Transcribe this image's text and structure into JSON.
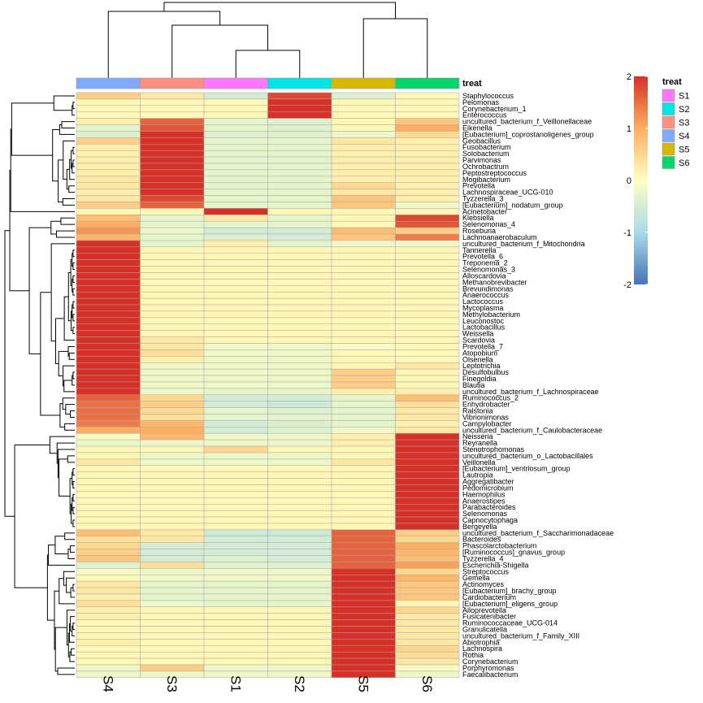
{
  "chart_data": {
    "type": "heatmap",
    "columns": [
      "S4",
      "S3",
      "S1",
      "S2",
      "S5",
      "S6"
    ],
    "annotation": {
      "title": "treat",
      "legend": [
        {
          "label": "S1",
          "color": "#FF77FF"
        },
        {
          "label": "S2",
          "color": "#00E5E5"
        },
        {
          "label": "S3",
          "color": "#FF9080"
        },
        {
          "label": "S4",
          "color": "#80AAFF"
        },
        {
          "label": "S5",
          "color": "#D6B800"
        },
        {
          "label": "S6",
          "color": "#00D66A"
        }
      ]
    },
    "colorbar": {
      "min": -2,
      "max": 2,
      "ticks": [
        2,
        1,
        0,
        -1,
        -2
      ]
    },
    "rows": [
      {
        "name": "Staphylococcus",
        "values": [
          0.6,
          0.3,
          -0.5,
          1.8,
          -0.4,
          0.1
        ]
      },
      {
        "name": "Pelomonas",
        "values": [
          0.1,
          0.1,
          0.1,
          2.0,
          0.1,
          0.1
        ]
      },
      {
        "name": "Corynebacterium_1",
        "values": [
          0.1,
          0.1,
          0.1,
          2.0,
          0.1,
          0.1
        ]
      },
      {
        "name": "Enterococcus",
        "values": [
          0.1,
          0.1,
          0.1,
          2.0,
          0.1,
          0.1
        ]
      },
      {
        "name": "uncultured_bacterium_f_Veillonellaceae",
        "values": [
          0.2,
          1.6,
          -0.3,
          -0.4,
          0.1,
          0.7
        ]
      },
      {
        "name": "Eikenella",
        "values": [
          -0.3,
          1.7,
          -0.3,
          -0.4,
          0.1,
          1.0
        ]
      },
      {
        "name": "[Eubacterium]_coprostanoligenes_group",
        "values": [
          -0.4,
          2.0,
          -0.4,
          -0.4,
          -0.2,
          0.5
        ]
      },
      {
        "name": "Geobacillus",
        "values": [
          0.6,
          2.0,
          -0.3,
          -0.3,
          0.3,
          0.2
        ]
      },
      {
        "name": "Fusobacterium",
        "values": [
          0.2,
          2.0,
          -0.3,
          -0.3,
          0.2,
          0.2
        ]
      },
      {
        "name": "Solobacterium",
        "values": [
          0.2,
          2.0,
          -0.3,
          -0.3,
          0.2,
          0.2
        ]
      },
      {
        "name": "Parvimonas",
        "values": [
          0.2,
          2.0,
          -0.3,
          -0.3,
          0.2,
          0.2
        ]
      },
      {
        "name": "Ochrobactrum",
        "values": [
          0.2,
          2.0,
          -0.3,
          -0.3,
          0.2,
          0.2
        ]
      },
      {
        "name": "Peptostreptococcus",
        "values": [
          0.2,
          2.0,
          -0.3,
          -0.3,
          0.2,
          0.2
        ]
      },
      {
        "name": "Mogibacterium",
        "values": [
          0.3,
          2.0,
          -0.3,
          -0.3,
          0.2,
          0.2
        ]
      },
      {
        "name": "Prevotella",
        "values": [
          0.3,
          2.0,
          -0.3,
          -0.3,
          0.5,
          0.2
        ]
      },
      {
        "name": "Lachnospiraceae_UCG-010",
        "values": [
          0.2,
          2.0,
          -0.3,
          -0.3,
          0.3,
          0.2
        ]
      },
      {
        "name": "Tyzzerella_3",
        "values": [
          0.3,
          1.8,
          -0.3,
          -0.3,
          0.7,
          0.2
        ]
      },
      {
        "name": "[Eubacterium]_nodatum_group",
        "values": [
          0.6,
          1.6,
          -0.3,
          -0.3,
          0.7,
          -0.2
        ]
      },
      {
        "name": "Acinetobacter",
        "values": [
          0.1,
          0.1,
          2.0,
          0.1,
          0.1,
          0.1
        ]
      },
      {
        "name": "Klebsiella",
        "values": [
          0.8,
          -0.3,
          0.3,
          -0.3,
          0.1,
          1.8
        ]
      },
      {
        "name": "Selenomonas_4",
        "values": [
          1.0,
          -0.3,
          -0.3,
          -0.3,
          0.1,
          1.7
        ]
      },
      {
        "name": "Roseburia",
        "values": [
          1.2,
          -0.2,
          -0.5,
          -0.5,
          0.8,
          0.6
        ]
      },
      {
        "name": "Lachnoanaerobaculum",
        "values": [
          0.9,
          -0.3,
          -0.4,
          -0.5,
          0.7,
          1.4
        ]
      },
      {
        "name": "uncultured_bacterium_f_Mitochondria",
        "values": [
          2.0,
          -0.3,
          0.2,
          -0.3,
          -0.2,
          -0.2
        ]
      },
      {
        "name": "Tannerella",
        "values": [
          2.0,
          0.1,
          0.1,
          0.1,
          0.1,
          0.1
        ]
      },
      {
        "name": "Prevotella_6",
        "values": [
          2.0,
          0.1,
          0.1,
          0.1,
          0.1,
          0.1
        ]
      },
      {
        "name": "Treponema_2",
        "values": [
          2.0,
          0.1,
          0.1,
          0.1,
          0.1,
          0.1
        ]
      },
      {
        "name": "Selenomonas_3",
        "values": [
          2.0,
          0.1,
          0.1,
          0.1,
          0.1,
          0.1
        ]
      },
      {
        "name": "Alloscardovia",
        "values": [
          2.0,
          0.1,
          0.1,
          0.1,
          0.1,
          0.1
        ]
      },
      {
        "name": "Methanobrevibacter",
        "values": [
          2.0,
          0.1,
          0.1,
          0.1,
          0.1,
          0.1
        ]
      },
      {
        "name": "Brevundimonas",
        "values": [
          2.0,
          0.1,
          0.1,
          0.1,
          0.1,
          0.1
        ]
      },
      {
        "name": "Anaerococcus",
        "values": [
          2.0,
          0.1,
          0.1,
          0.1,
          0.1,
          0.1
        ]
      },
      {
        "name": "Lactococcus",
        "values": [
          2.0,
          0.1,
          0.1,
          0.1,
          0.1,
          0.1
        ]
      },
      {
        "name": "Mycoplasma",
        "values": [
          2.0,
          0.1,
          0.1,
          0.1,
          0.1,
          0.1
        ]
      },
      {
        "name": "Methylobacterium",
        "values": [
          2.0,
          0.1,
          0.1,
          0.1,
          0.1,
          0.1
        ]
      },
      {
        "name": "Leuconostoc",
        "values": [
          2.0,
          0.1,
          0.1,
          0.1,
          0.1,
          0.1
        ]
      },
      {
        "name": "Lactobacillus",
        "values": [
          2.0,
          0.1,
          0.1,
          0.1,
          0.1,
          0.1
        ]
      },
      {
        "name": "Weissella",
        "values": [
          2.0,
          0.1,
          0.1,
          0.1,
          0.1,
          0.1
        ]
      },
      {
        "name": "Scardovia",
        "values": [
          2.0,
          0.3,
          0.1,
          0.1,
          0.1,
          0.1
        ]
      },
      {
        "name": "Prevotella_7",
        "values": [
          2.0,
          0.3,
          -0.2,
          -0.2,
          -0.1,
          0.1
        ]
      },
      {
        "name": "Atopobium",
        "values": [
          2.0,
          0.4,
          -0.2,
          -0.2,
          0.1,
          0.1
        ]
      },
      {
        "name": "Olsenella",
        "values": [
          2.0,
          0.2,
          -0.2,
          -0.2,
          0.1,
          0.1
        ]
      },
      {
        "name": "Leptotrichia",
        "values": [
          2.0,
          -0.2,
          -0.2,
          -0.2,
          0.1,
          0.3
        ]
      },
      {
        "name": "Desulfobulbus",
        "values": [
          2.0,
          -0.2,
          -0.2,
          -0.2,
          0.6,
          0.1
        ]
      },
      {
        "name": "Finegoldia",
        "values": [
          2.0,
          -0.2,
          -0.2,
          -0.2,
          0.6,
          0.1
        ]
      },
      {
        "name": "Blautia",
        "values": [
          2.0,
          -0.2,
          -0.2,
          -0.2,
          0.6,
          0.1
        ]
      },
      {
        "name": "uncultured_bacterium_f_Lachnospiraceae",
        "values": [
          2.0,
          -0.2,
          -0.3,
          -0.3,
          0.2,
          0.2
        ]
      },
      {
        "name": "Ruminococcus_2",
        "values": [
          1.6,
          0.5,
          -0.5,
          -0.5,
          -0.3,
          0.8
        ]
      },
      {
        "name": "Enhydrobacter",
        "values": [
          1.5,
          0.6,
          -0.5,
          -0.6,
          -0.3,
          0.4
        ]
      },
      {
        "name": "Ralstonia",
        "values": [
          1.5,
          0.5,
          -0.3,
          -0.4,
          -0.3,
          0.3
        ]
      },
      {
        "name": "Vibrionimonas",
        "values": [
          1.5,
          0.4,
          -0.3,
          -0.3,
          -0.3,
          0.3
        ]
      },
      {
        "name": "Campylobacter",
        "values": [
          1.4,
          0.9,
          -0.5,
          -0.4,
          -0.3,
          0.2
        ]
      },
      {
        "name": "uncultured_bacterium_f_Caulobacteraceae",
        "values": [
          1.0,
          1.0,
          -0.5,
          -0.4,
          -0.2,
          0.3
        ]
      },
      {
        "name": "Neisseria",
        "values": [
          -0.1,
          0.9,
          -0.2,
          -0.2,
          0.2,
          2.0
        ]
      },
      {
        "name": "Reyranella",
        "values": [
          -0.2,
          -0.2,
          -0.2,
          -0.2,
          0.2,
          2.0
        ]
      },
      {
        "name": "Stenotrophomonas",
        "values": [
          0.1,
          0.1,
          0.5,
          0.1,
          0.1,
          2.0
        ]
      },
      {
        "name": "uncultured_bacterium_o_Lactobacillales",
        "values": [
          0.1,
          -0.2,
          -0.2,
          -0.2,
          0.1,
          2.0
        ]
      },
      {
        "name": "Veillonella",
        "values": [
          0.3,
          -0.2,
          -0.2,
          -0.2,
          0.3,
          2.0
        ]
      },
      {
        "name": "[Eubacterium]_ventriosum_group",
        "values": [
          0.1,
          0.1,
          0.1,
          0.1,
          0.1,
          2.0
        ]
      },
      {
        "name": "Lautropia",
        "values": [
          0.1,
          0.1,
          0.1,
          0.1,
          0.1,
          2.0
        ]
      },
      {
        "name": "Aggregatibacter",
        "values": [
          0.1,
          0.1,
          0.1,
          0.1,
          0.1,
          2.0
        ]
      },
      {
        "name": "Pedomicrobium",
        "values": [
          0.1,
          0.1,
          0.1,
          0.1,
          0.1,
          2.0
        ]
      },
      {
        "name": "Haemophilus",
        "values": [
          0.1,
          0.1,
          0.1,
          0.1,
          0.1,
          2.0
        ]
      },
      {
        "name": "Anaerostipes",
        "values": [
          0.1,
          0.1,
          0.1,
          0.1,
          0.1,
          2.0
        ]
      },
      {
        "name": "Parabacteroides",
        "values": [
          0.1,
          0.1,
          0.1,
          0.1,
          0.1,
          2.0
        ]
      },
      {
        "name": "Selenomonas",
        "values": [
          0.1,
          0.1,
          0.1,
          0.1,
          0.1,
          2.0
        ]
      },
      {
        "name": "Capnocytophaga",
        "values": [
          0.1,
          0.1,
          0.1,
          0.1,
          0.1,
          2.0
        ]
      },
      {
        "name": "Bergeyella",
        "values": [
          0.1,
          0.1,
          0.1,
          0.1,
          0.1,
          2.0
        ]
      },
      {
        "name": "uncultured_bacterium_f_Saccharimonadaceae",
        "values": [
          0.8,
          0.3,
          -0.6,
          -0.6,
          1.6,
          0.6
        ]
      },
      {
        "name": "Bacteroides",
        "values": [
          0.4,
          0.3,
          -0.5,
          -0.5,
          1.6,
          0.5
        ]
      },
      {
        "name": "Phascolarctobacterium",
        "values": [
          0.5,
          -0.5,
          -0.5,
          -0.5,
          1.6,
          1.0
        ]
      },
      {
        "name": "[Ruminococcus]_gnavus_group",
        "values": [
          0.6,
          -0.5,
          -0.5,
          -0.5,
          1.6,
          0.9
        ]
      },
      {
        "name": "Tyzzerella_4",
        "values": [
          0.7,
          -0.5,
          -0.4,
          -0.5,
          1.6,
          0.8
        ]
      },
      {
        "name": "Escherichia-Shigella",
        "values": [
          -0.4,
          0.4,
          -0.4,
          -0.4,
          1.6,
          1.1
        ]
      },
      {
        "name": "Streptococcus",
        "values": [
          -0.1,
          -0.2,
          -0.2,
          -0.2,
          2.0,
          0.5
        ]
      },
      {
        "name": "Gemella",
        "values": [
          0.1,
          -0.2,
          -0.2,
          -0.2,
          2.0,
          0.9
        ]
      },
      {
        "name": "Actinomyces",
        "values": [
          0.3,
          -0.3,
          -0.3,
          -0.3,
          2.0,
          0.7
        ]
      },
      {
        "name": "[Eubacterium]_brachy_group",
        "values": [
          0.3,
          -0.3,
          -0.3,
          -0.3,
          2.0,
          0.7
        ]
      },
      {
        "name": "Cardiobacterium",
        "values": [
          0.2,
          -0.3,
          -0.3,
          -0.3,
          2.0,
          0.7
        ]
      },
      {
        "name": "[Eubacterium]_eligens_group",
        "values": [
          0.4,
          -0.2,
          -0.3,
          -0.3,
          2.0,
          0.1
        ]
      },
      {
        "name": "Alloprevotella",
        "values": [
          0.2,
          0.1,
          0.1,
          0.1,
          2.0,
          0.5
        ]
      },
      {
        "name": "Fusicatenibacter",
        "values": [
          0.2,
          0.1,
          0.1,
          0.1,
          2.0,
          0.3
        ]
      },
      {
        "name": "Ruminococcaceae_UCG-014",
        "values": [
          0.1,
          0.1,
          0.1,
          0.1,
          2.0,
          0.3
        ]
      },
      {
        "name": "Granulicatella",
        "values": [
          0.1,
          0.1,
          0.1,
          0.1,
          2.0,
          0.3
        ]
      },
      {
        "name": "uncultured_bacterium_f_Family_XIII",
        "values": [
          0.1,
          0.1,
          0.1,
          0.1,
          2.0,
          0.3
        ]
      },
      {
        "name": "Abiotrophia",
        "values": [
          0.2,
          0.1,
          0.1,
          0.1,
          2.0,
          0.3
        ]
      },
      {
        "name": "Lachnospira",
        "values": [
          0.1,
          0.1,
          0.1,
          0.1,
          2.0,
          0.5
        ]
      },
      {
        "name": "Rothia",
        "values": [
          0.1,
          0.1,
          0.1,
          0.1,
          2.0,
          0.4
        ]
      },
      {
        "name": "Corynebacterium",
        "values": [
          0.1,
          0.1,
          0.1,
          0.1,
          2.0,
          0.3
        ]
      },
      {
        "name": "Porphyromonas",
        "values": [
          -0.2,
          0.6,
          -0.2,
          -0.2,
          2.0,
          -0.1
        ]
      },
      {
        "name": "Faecalibacterium",
        "values": [
          -0.2,
          -0.2,
          -0.2,
          -0.2,
          2.0,
          -0.2
        ]
      }
    ]
  }
}
